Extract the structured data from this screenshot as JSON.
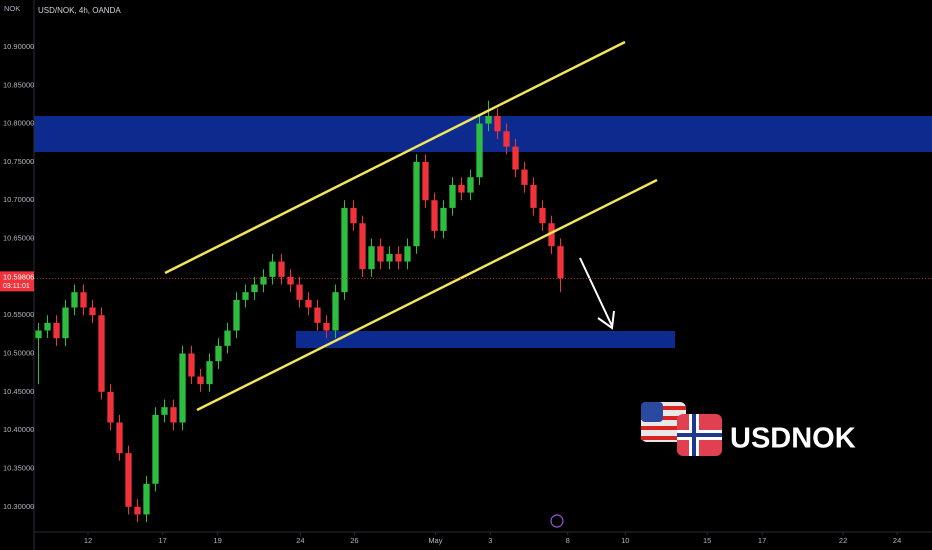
{
  "chart_data": {
    "type": "candlestick",
    "symbol_title": "USD/NOK, 4h, OANDA",
    "currency": "NOK",
    "watermark": "USDNOK",
    "up_color": "#2dbd3f",
    "down_color": "#f0333a",
    "ylim": [
      10.2697,
      10.9613
    ],
    "yticks": [
      {
        "value": 10.9,
        "label": "10.90000"
      },
      {
        "value": 10.85,
        "label": "10.85000"
      },
      {
        "value": 10.8,
        "label": "10.80000"
      },
      {
        "value": 10.75,
        "label": "10.75000"
      },
      {
        "value": 10.7,
        "label": "10.70000"
      },
      {
        "value": 10.65,
        "label": "10.65000"
      },
      {
        "value": 10.55,
        "label": "10.55000"
      },
      {
        "value": 10.5,
        "label": "10.50000"
      },
      {
        "value": 10.45,
        "label": "10.45000"
      },
      {
        "value": 10.4,
        "label": "10.40000"
      },
      {
        "value": 10.35,
        "label": "10.35000"
      },
      {
        "value": 10.3,
        "label": "10.30000"
      }
    ],
    "xlim": [
      0,
      100
    ],
    "xticks": [
      {
        "value": 6.0,
        "label": "12"
      },
      {
        "value": 14.3,
        "label": "17"
      },
      {
        "value": 20.4,
        "label": "19"
      },
      {
        "value": 29.6,
        "label": "24"
      },
      {
        "value": 35.6,
        "label": "26"
      },
      {
        "value": 44.6,
        "label": "May"
      },
      {
        "value": 50.7,
        "label": "3"
      },
      {
        "value": 59.3,
        "label": "8"
      },
      {
        "value": 65.7,
        "label": "10"
      },
      {
        "value": 74.8,
        "label": "15"
      },
      {
        "value": 80.9,
        "label": "17"
      },
      {
        "value": 89.9,
        "label": "22"
      },
      {
        "value": 95.9,
        "label": "24"
      }
    ],
    "last_price": {
      "value": 10.59806,
      "label": "10.59806"
    },
    "countdown": "03:11:01",
    "open": [
      10.52,
      10.53,
      10.54,
      10.52,
      10.56,
      10.58,
      10.56,
      10.55,
      10.45,
      10.41,
      10.37,
      10.3,
      10.29,
      10.33,
      10.42,
      10.43,
      10.41,
      10.5,
      10.47,
      10.46,
      10.49,
      10.51,
      10.53,
      10.57,
      10.58,
      10.59,
      10.6,
      10.62,
      10.6,
      10.59,
      10.57,
      10.56,
      10.54,
      10.53,
      10.58,
      10.69,
      10.67,
      10.61,
      10.64,
      10.62,
      10.63,
      10.62,
      10.64,
      10.75,
      10.7,
      10.66,
      10.69,
      10.72,
      10.71,
      10.73,
      10.8,
      10.81,
      10.79,
      10.77,
      10.74,
      10.72,
      10.69,
      10.67,
      10.64
    ],
    "close": [
      10.53,
      10.54,
      10.52,
      10.56,
      10.58,
      10.56,
      10.55,
      10.45,
      10.41,
      10.37,
      10.3,
      10.29,
      10.33,
      10.42,
      10.43,
      10.41,
      10.5,
      10.47,
      10.46,
      10.49,
      10.51,
      10.53,
      10.57,
      10.58,
      10.59,
      10.6,
      10.62,
      10.6,
      10.59,
      10.57,
      10.56,
      10.54,
      10.53,
      10.58,
      10.69,
      10.67,
      10.61,
      10.64,
      10.62,
      10.63,
      10.62,
      10.64,
      10.75,
      10.7,
      10.66,
      10.69,
      10.72,
      10.71,
      10.73,
      10.8,
      10.81,
      10.79,
      10.77,
      10.74,
      10.72,
      10.69,
      10.67,
      10.64,
      10.598
    ],
    "high": [
      10.54,
      10.55,
      10.55,
      10.57,
      10.59,
      10.59,
      10.57,
      10.56,
      10.46,
      10.42,
      10.38,
      10.31,
      10.34,
      10.43,
      10.44,
      10.44,
      10.51,
      10.51,
      10.48,
      10.5,
      10.52,
      10.54,
      10.58,
      10.59,
      10.6,
      10.61,
      10.63,
      10.63,
      10.61,
      10.6,
      10.58,
      10.57,
      10.55,
      10.59,
      10.7,
      10.7,
      10.68,
      10.65,
      10.65,
      10.64,
      10.64,
      10.65,
      10.76,
      10.76,
      10.71,
      10.7,
      10.73,
      10.73,
      10.74,
      10.81,
      10.83,
      10.82,
      10.8,
      10.78,
      10.75,
      10.73,
      10.7,
      10.68,
      10.65
    ],
    "low": [
      10.46,
      10.52,
      10.51,
      10.51,
      10.55,
      10.55,
      10.54,
      10.44,
      10.4,
      10.36,
      10.29,
      10.28,
      10.28,
      10.32,
      10.41,
      10.4,
      10.4,
      10.46,
      10.45,
      10.45,
      10.48,
      10.5,
      10.52,
      10.56,
      10.57,
      10.58,
      10.59,
      10.59,
      10.58,
      10.56,
      10.55,
      10.53,
      10.52,
      10.52,
      10.57,
      10.66,
      10.6,
      10.6,
      10.61,
      10.61,
      10.61,
      10.61,
      10.63,
      10.69,
      10.65,
      10.65,
      10.68,
      10.7,
      10.7,
      10.72,
      10.79,
      10.78,
      10.76,
      10.73,
      10.71,
      10.68,
      10.66,
      10.63,
      10.58
    ]
  }
}
